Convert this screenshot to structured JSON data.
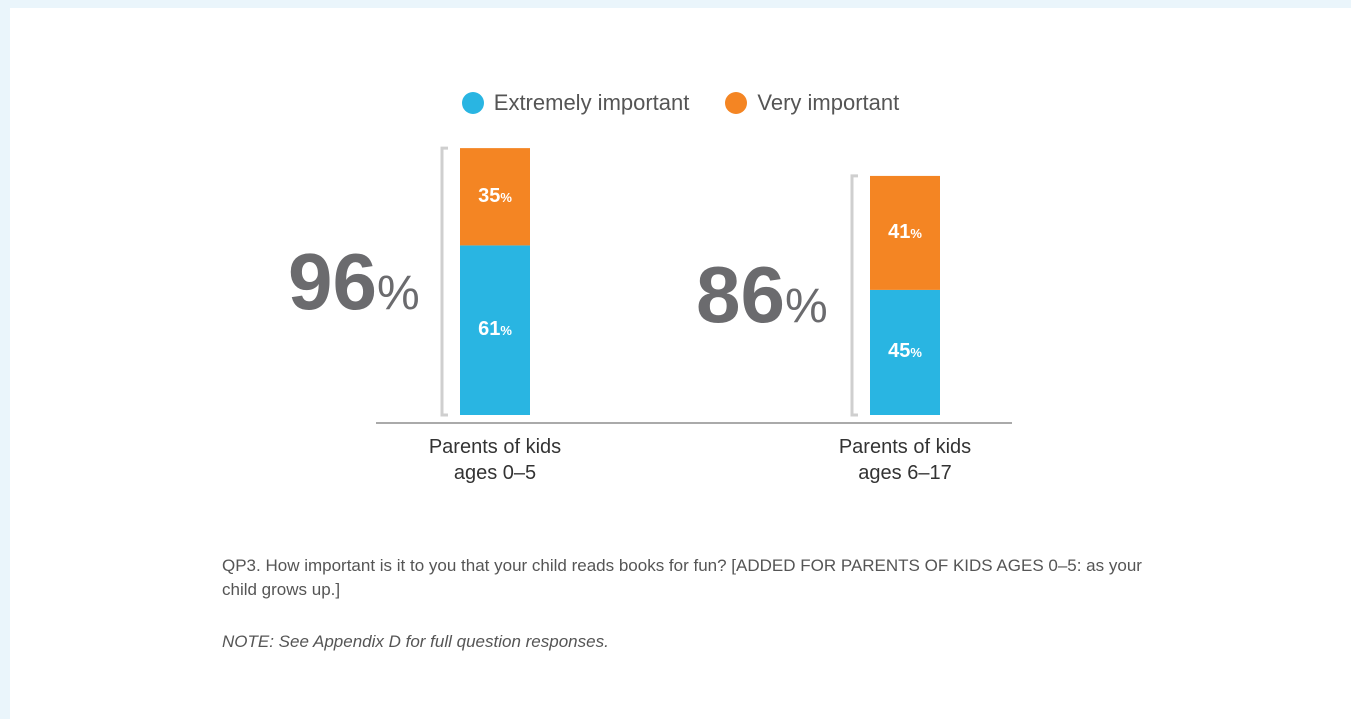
{
  "chart_data": {
    "type": "bar",
    "stacked": true,
    "categories": [
      "Parents of kids ages 0–5",
      "Parents of kids ages 6–17"
    ],
    "category_lines": [
      [
        "Parents of kids",
        "ages 0–5"
      ],
      [
        "Parents of kids",
        "ages 6–17"
      ]
    ],
    "totals": [
      96,
      86
    ],
    "total_display": [
      "96",
      "86"
    ],
    "series": [
      {
        "name": "Extremely important",
        "values": [
          61,
          45
        ],
        "color": "#29b5e2"
      },
      {
        "name": "Very important",
        "values": [
          35,
          41
        ],
        "color": "#f48523"
      }
    ],
    "ylim": [
      0,
      100
    ],
    "grid": false,
    "legend": "top-center"
  },
  "footnote": "QP3. How important is it to you that your child reads books for fun?  [ADDED FOR PARENTS OF KIDS AGES 0–5: as your child grows up.]",
  "note": "NOTE: See Appendix D for full question responses."
}
